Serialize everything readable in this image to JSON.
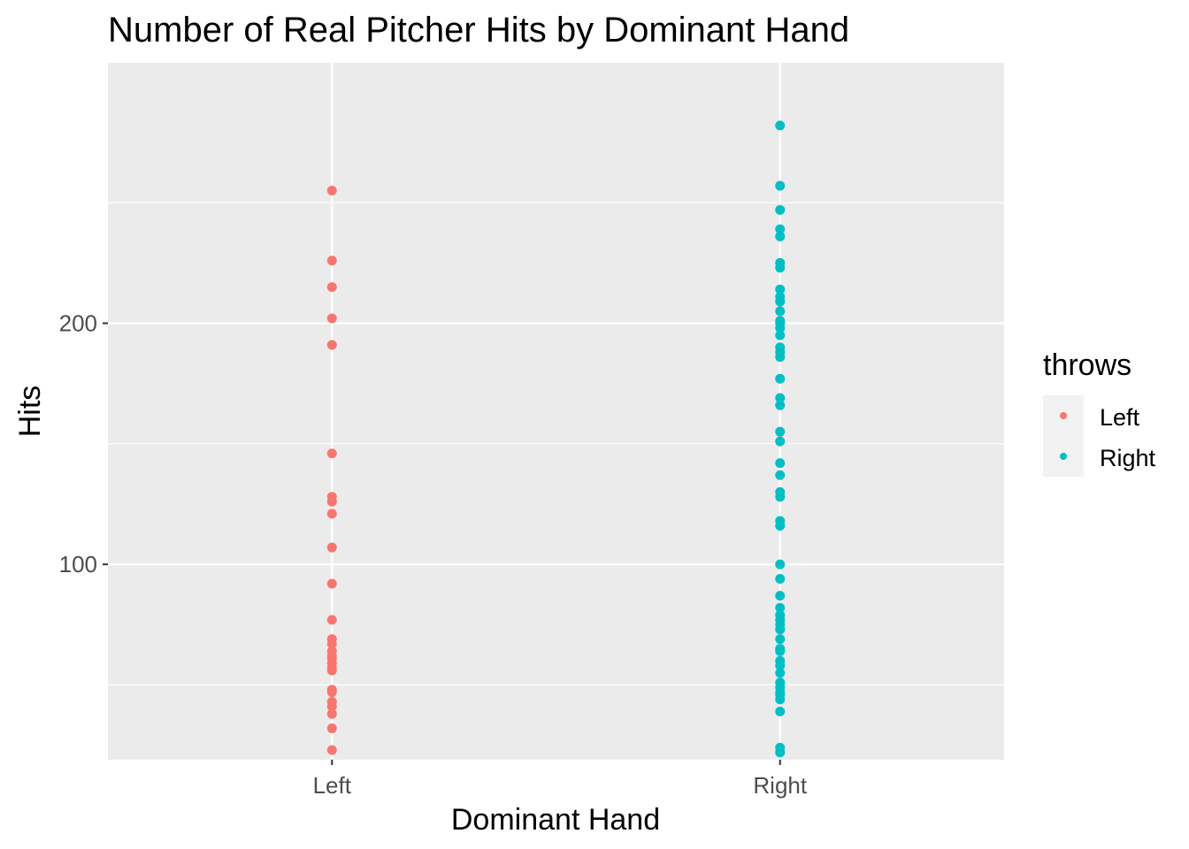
{
  "chart_data": {
    "type": "scatter",
    "title": "Number of Real Pitcher Hits by Dominant Hand",
    "xlabel": "Dominant Hand",
    "ylabel": "Hits",
    "categories": [
      "Left",
      "Right"
    ],
    "yticks": [
      100,
      200
    ],
    "ylim": [
      19,
      308
    ],
    "grid": true,
    "legend": {
      "title": "throws",
      "position": "right",
      "entries": [
        "Left",
        "Right"
      ]
    },
    "colors": {
      "Left": "#F8766D",
      "Right": "#00BFC4",
      "panel": "#EBEBEB",
      "grid": "#FFFFFF"
    },
    "series": [
      {
        "name": "Left",
        "values": [
          255,
          226,
          215,
          202,
          191,
          146,
          128,
          126,
          121,
          107,
          92,
          77,
          69,
          67,
          64,
          62,
          61,
          59,
          57,
          56,
          48,
          47,
          43,
          41,
          38,
          32,
          23
        ]
      },
      {
        "name": "Right",
        "values": [
          282,
          257,
          247,
          239,
          236,
          225,
          223,
          214,
          211,
          209,
          205,
          201,
          200,
          198,
          195,
          190,
          188,
          186,
          177,
          169,
          166,
          155,
          151,
          142,
          137,
          130,
          128,
          118,
          116,
          100,
          94,
          87,
          82,
          79,
          77,
          75,
          73,
          69,
          65,
          64,
          60,
          58,
          55,
          51,
          49,
          47,
          46,
          44,
          39,
          24,
          22
        ]
      }
    ]
  }
}
